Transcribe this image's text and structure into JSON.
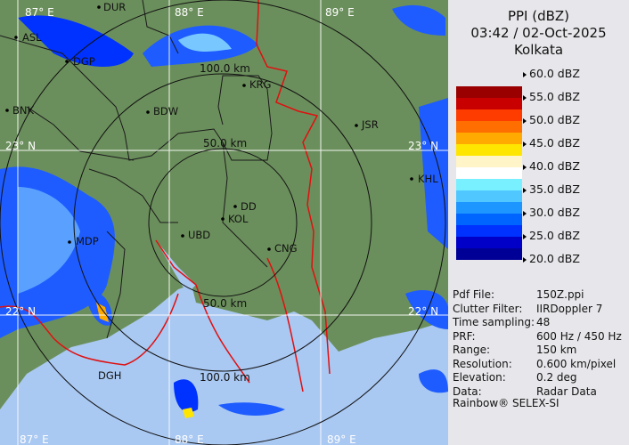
{
  "header": {
    "product": "PPI (dBZ)",
    "datetime": "03:42 / 02-Oct-2025",
    "site": "Kolkata"
  },
  "legend": {
    "labels": [
      "60.0 dBZ",
      "55.0 dBZ",
      "50.0 dBZ",
      "45.0 dBZ",
      "40.0 dBZ",
      "35.0 dBZ",
      "30.0 dBZ",
      "25.0 dBZ",
      "20.0 dBZ"
    ],
    "colors": [
      "#9b0000",
      "#c80000",
      "#ff3c00",
      "#ff6e00",
      "#ffaa00",
      "#ffe600",
      "#fff5c8",
      "#ffffff",
      "#78f0ff",
      "#50c8ff",
      "#1e96ff",
      "#0064ff",
      "#0032ff",
      "#0000c8",
      "#000096"
    ]
  },
  "info": [
    {
      "key": "Pdf File:",
      "value": "150Z.ppi"
    },
    {
      "key": "Clutter Filter:",
      "value": "IIRDoppler 7"
    },
    {
      "key": "Time sampling:",
      "value": "48"
    },
    {
      "key": "PRF:",
      "value": "600 Hz / 450 Hz"
    },
    {
      "key": "Range:",
      "value": "150 km"
    },
    {
      "key": "Resolution:",
      "value": "0.600 km/pixel"
    },
    {
      "key": "Elevation:",
      "value": "0.2 deg"
    },
    {
      "key": "Data:",
      "value": "Radar Data"
    }
  ],
  "credit": "Rainbow® SELEX-SI",
  "map": {
    "lon_ticks": [
      "87° E",
      "88° E",
      "89° E"
    ],
    "lat_ticks": [
      "23° N",
      "22° N"
    ],
    "range_rings": [
      "50.0 km",
      "100.0 km"
    ],
    "cities": [
      "DUR",
      "ASL",
      "DGP",
      "BNK",
      "BDW",
      "KRG",
      "JSR",
      "KHL",
      "DD",
      "KOL",
      "UBD",
      "CNG",
      "MDP",
      "DGH"
    ],
    "colors": {
      "land": "#6b8f5c",
      "sea": "#a9c8f2",
      "border": "#e01010",
      "district": "#1a1a1a"
    }
  }
}
